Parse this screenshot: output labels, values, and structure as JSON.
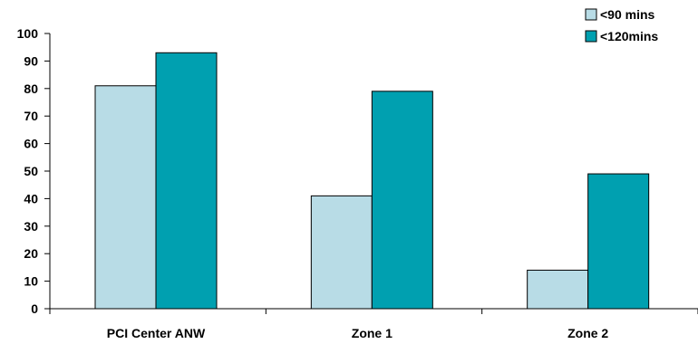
{
  "chart_data": {
    "type": "bar",
    "categories": [
      "PCI Center ANW",
      "Zone 1",
      "Zone 2"
    ],
    "series": [
      {
        "name": "<90 mins",
        "values": [
          81,
          41,
          14
        ],
        "color": "#b8dce6"
      },
      {
        "name": "<120mins",
        "values": [
          93,
          79,
          49
        ],
        "color": "#00a0b0"
      }
    ],
    "yticks": [
      0,
      10,
      20,
      30,
      40,
      50,
      60,
      70,
      80,
      90,
      100
    ],
    "ylim": [
      0,
      100
    ],
    "legend_position": "top-right",
    "grid": false
  }
}
